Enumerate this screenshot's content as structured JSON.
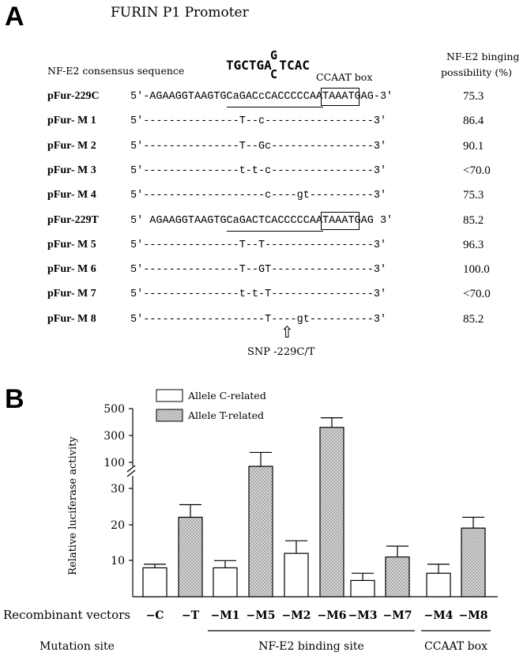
{
  "panel_a": {
    "letter": "A",
    "title": "FURIN P1 Promoter",
    "consensus_label": "NF-E2 consensus sequence",
    "consensus_main": "TGCTGA TCAC",
    "consensus_top": "G",
    "consensus_bottom": "C",
    "ccaat_label": "CCAAT box",
    "prob_header_1": "NF-E2 binging",
    "prob_header_2": "possibility (%)",
    "rows": [
      {
        "label": "pFur-229C",
        "seq": "5'-AGAAGGTAAGTGCaGACcCACCCCCAATAAATGAG-3'",
        "prob": "75.3"
      },
      {
        "label": "pFur- M 1",
        "seq": "5'---------------T--c-----------------3'",
        "prob": "86.4"
      },
      {
        "label": "pFur- M 2",
        "seq": "5'---------------T--Gc----------------3'",
        "prob": "90.1"
      },
      {
        "label": "pFur- M 3",
        "seq": "5'---------------t-t-c----------------3'",
        "prob": "<70.0"
      },
      {
        "label": "pFur- M 4",
        "seq": "5'-------------------c----gt----------3'",
        "prob": "75.3"
      },
      {
        "label": "pFur-229T",
        "seq": "5' AGAAGGTAAGTGCaGACTCACCCCCAATAAATGAG 3'",
        "prob": "85.2"
      },
      {
        "label": "pFur- M 5",
        "seq": "5'---------------T--T-----------------3'",
        "prob": "96.3"
      },
      {
        "label": "pFur- M 6",
        "seq": "5'---------------T--GT----------------3'",
        "prob": "100.0"
      },
      {
        "label": "pFur- M 7",
        "seq": "5'---------------t-t-T----------------3'",
        "prob": "<70.0"
      },
      {
        "label": "pFur- M 8",
        "seq": "5'-------------------T----gt----------3'",
        "prob": "85.2"
      }
    ],
    "snp_arrow": "⇧",
    "snp_label": "SNP -229C/T"
  },
  "chart_data": {
    "type": "bar",
    "title": "",
    "panel_letter": "B",
    "ylabel": "Relative luciferase activity",
    "xlabel": "Recombinant vectors",
    "y_scale": "broken: linear 0-30, log-like 100-500",
    "y_ticks": [
      "10",
      "20",
      "30",
      "100",
      "300",
      "500"
    ],
    "legend": {
      "placement": "top-left",
      "entries": [
        {
          "name": "Allele C-related",
          "color": "#ffffff"
        },
        {
          "name": "Allele T-related",
          "color": "#bdbdbd"
        }
      ]
    },
    "categories": [
      "−C",
      "−T",
      "−M1",
      "−M5",
      "−M2",
      "−M6",
      "−M3",
      "−M7",
      "−M4",
      "−M8"
    ],
    "allele": [
      "C",
      "T",
      "C",
      "T",
      "C",
      "T",
      "C",
      "T",
      "C",
      "T"
    ],
    "values": [
      8,
      22,
      8,
      85,
      12,
      350,
      4.5,
      11,
      6.5,
      19
    ],
    "errors_upper": [
      9,
      25.5,
      10,
      150,
      15.5,
      420,
      6.5,
      14,
      9,
      22
    ],
    "groups": [
      {
        "label": "NF-E2 binding site",
        "from": 2,
        "to": 7
      },
      {
        "label": "CCAAT box",
        "from": 8,
        "to": 9
      }
    ],
    "mutation_site_label": "Mutation site"
  }
}
